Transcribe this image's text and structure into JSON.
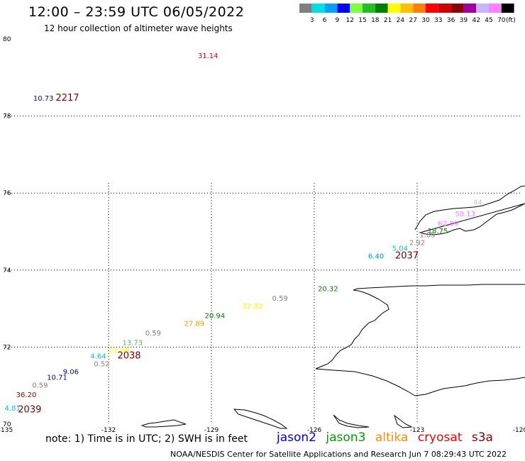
{
  "header": {
    "title": "12:00 – 23:59 UTC 06/05/2022",
    "subtitle": "12 hour collection of altimeter wave heights"
  },
  "scale": {
    "colors": [
      "#808080",
      "#00e0e0",
      "#00a0ff",
      "#0000ff",
      "#80ff40",
      "#20c020",
      "#008000",
      "#ffff00",
      "#ffc000",
      "#ff8000",
      "#ff0000",
      "#d00000",
      "#900000",
      "#a000a0",
      "#c8b4ff",
      "#ff80ff",
      "#000000"
    ],
    "labels": [
      "3",
      "6",
      "9",
      "12",
      "15",
      "18",
      "21",
      "24",
      "27",
      "30",
      "33",
      "36",
      "39",
      "42",
      "45",
      "70"
    ],
    "unit": "(ft)"
  },
  "axes": {
    "lat_labels": [
      "80",
      "78",
      "76",
      "74",
      "72",
      "70"
    ],
    "lon_labels": [
      "-135",
      "-132",
      "-129",
      "-126",
      "-123",
      "-120"
    ]
  },
  "chart_data": {
    "type": "scatter",
    "lon_range": [
      -135,
      -120
    ],
    "lat_range": [
      70,
      80
    ],
    "observations": [
      {
        "lon": -129.1,
        "lat": 79.5,
        "value": "31.14",
        "color": "#e00000"
      },
      {
        "lon": -133.9,
        "lat": 78.4,
        "value": "10.73",
        "color": "#0000c0"
      },
      {
        "lon": -121.2,
        "lat": 75.7,
        "value": "44.",
        "color": "#c8b4ff"
      },
      {
        "lon": -121.6,
        "lat": 75.4,
        "value": "58.13",
        "color": "#ff80ff"
      },
      {
        "lon": -122.1,
        "lat": 75.15,
        "value": "62.89",
        "color": "#ff80ff"
      },
      {
        "lon": -122.4,
        "lat": 74.95,
        "value": "18.75",
        "color": "#008000"
      },
      {
        "lon": -122.7,
        "lat": 74.85,
        "value": "1.85",
        "color": "#808080"
      },
      {
        "lon": -123.0,
        "lat": 74.65,
        "value": "2.92",
        "color": "#808080"
      },
      {
        "lon": -123.5,
        "lat": 74.5,
        "value": "5.04",
        "color": "#00c8c8"
      },
      {
        "lon": -124.2,
        "lat": 74.3,
        "value": "6.40",
        "color": "#00a0c0"
      },
      {
        "lon": -125.6,
        "lat": 73.45,
        "value": "20.32",
        "color": "#008000"
      },
      {
        "lon": -127.0,
        "lat": 73.2,
        "value": "0.59",
        "color": "#808080"
      },
      {
        "lon": -127.8,
        "lat": 73.0,
        "value": "22.82",
        "color": "#ffff00"
      },
      {
        "lon": -128.9,
        "lat": 72.75,
        "value": "20.94",
        "color": "#008000"
      },
      {
        "lon": -129.5,
        "lat": 72.55,
        "value": "27.89",
        "color": "#ffa000"
      },
      {
        "lon": -130.7,
        "lat": 72.3,
        "value": "0.59",
        "color": "#808080"
      },
      {
        "lon": -131.3,
        "lat": 72.05,
        "value": "13.73",
        "color": "#40d040"
      },
      {
        "lon": -131.7,
        "lat": 71.85,
        "value": "21.00",
        "color": "#ffff00"
      },
      {
        "lon": -132.3,
        "lat": 71.7,
        "value": "4.64",
        "color": "#00c8c8"
      },
      {
        "lon": -132.2,
        "lat": 71.5,
        "value": "0.52",
        "color": "#808080"
      },
      {
        "lon": -133.1,
        "lat": 71.3,
        "value": "9.06",
        "color": "#0000c0"
      },
      {
        "lon": -133.5,
        "lat": 71.15,
        "value": "10.71",
        "color": "#0000c0"
      },
      {
        "lon": -134.0,
        "lat": 70.95,
        "value": "0.59",
        "color": "#808080"
      },
      {
        "lon": -134.4,
        "lat": 70.7,
        "value": "36.20",
        "color": "#900000"
      },
      {
        "lon": -134.8,
        "lat": 70.35,
        "value": "4.81",
        "color": "#00c8c8"
      }
    ],
    "pass_labels": [
      {
        "lon": -133.2,
        "lat": 78.4,
        "label": "2217"
      },
      {
        "lon": -123.3,
        "lat": 74.3,
        "label": "2037"
      },
      {
        "lon": -131.4,
        "lat": 71.7,
        "label": "2038"
      },
      {
        "lon": -134.3,
        "lat": 70.3,
        "label": "2039"
      }
    ]
  },
  "note": "note:  1) Time is in UTC;  2) SWH is in feet",
  "satellites": [
    {
      "name": "jason2",
      "color": "#0000ff"
    },
    {
      "name": "jason3",
      "color": "#00a000"
    },
    {
      "name": "altika",
      "color": "#ff8c00"
    },
    {
      "name": "cryosat",
      "color": "#ff0000"
    },
    {
      "name": "s3a",
      "color": "#8b0000"
    }
  ],
  "footer": "NOAA/NESDIS Center for Satellite Applications and Research    Jun  7 08:29:43 UTC 2022"
}
